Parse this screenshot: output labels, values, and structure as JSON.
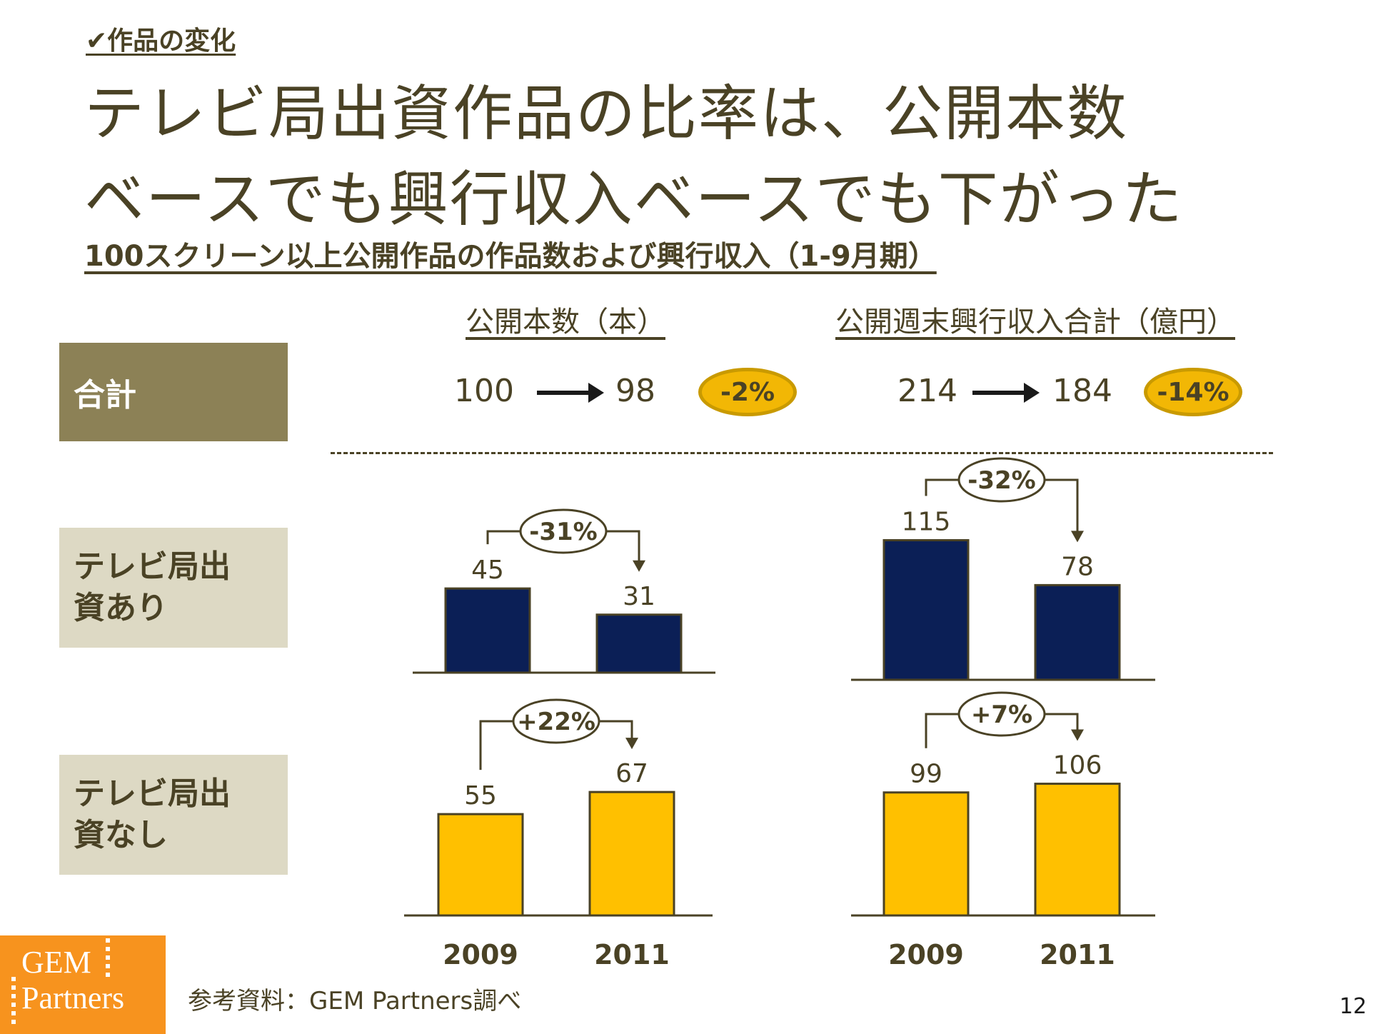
{
  "section_tag": "✔作品の変化",
  "title": {
    "line1": "テレビ局出資作品の比率は、公開本数",
    "line2": "ベースでも興行収入ベースでも下がった"
  },
  "subtitle": "100スクリーン以上公開作品の作品数および興行収入（1-9月期）",
  "columns": {
    "count_header": "公開本数（本）",
    "revenue_header": "公開週末興行収入合計（億円）"
  },
  "rows": {
    "total": "合計",
    "with_tv": "テレビ局出資あり",
    "without_tv": "テレビ局出資なし"
  },
  "totals": {
    "count_from": "100",
    "count_to": "98",
    "count_change": "-2%",
    "revenue_from": "214",
    "revenue_to": "184",
    "revenue_change": "-14%"
  },
  "colors": {
    "navy": "#0b1f56",
    "gold": "#ffc000",
    "olive": "#8c8156",
    "beige": "#ddd9c4",
    "pill": "#f2b705",
    "orange": "#f7931e"
  },
  "chart_data": [
    {
      "type": "bar",
      "categories": [
        "2009",
        "2011"
      ],
      "values": [
        45,
        31
      ],
      "change_label": "-31%",
      "color": "#0b1f56"
    },
    {
      "type": "bar",
      "categories": [
        "2009",
        "2011"
      ],
      "values": [
        115,
        78
      ],
      "change_label": "-32%",
      "color": "#0b1f56"
    },
    {
      "type": "bar",
      "categories": [
        "2009",
        "2011"
      ],
      "values": [
        55,
        67
      ],
      "change_label": "+22%",
      "color": "#ffc000"
    },
    {
      "type": "bar",
      "categories": [
        "2009",
        "2011"
      ],
      "values": [
        99,
        106
      ],
      "change_label": "+7%",
      "color": "#ffc000"
    }
  ],
  "footer": {
    "logo_line1": "GEM",
    "logo_line2": "Partners",
    "source": "参考資料：GEM Partners調べ",
    "page_number": "12"
  }
}
